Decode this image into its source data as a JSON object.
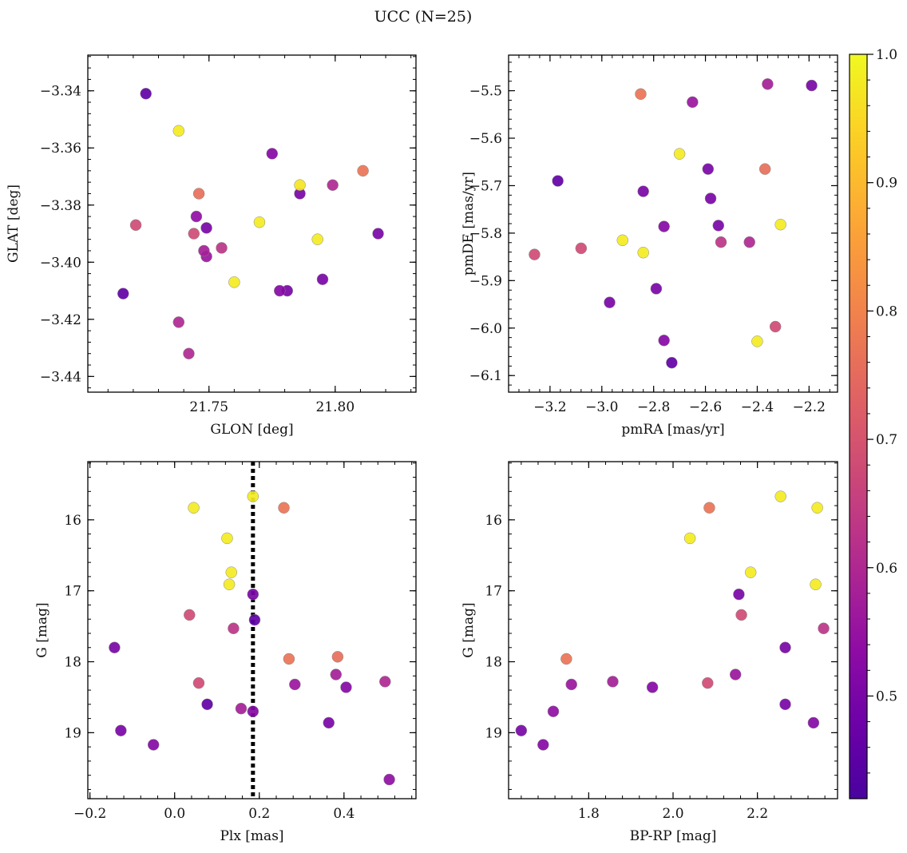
{
  "title": "UCC (N=25)",
  "colorbar": {
    "colormap": "plasma",
    "min": 0.42,
    "max": 1.0,
    "ticks": [
      0.5,
      0.6,
      0.7,
      0.8,
      0.9,
      1.0
    ],
    "tick_labels": [
      "0.5",
      "0.6",
      "0.7",
      "0.8",
      "0.9",
      "1.0"
    ]
  },
  "chart_data": [
    {
      "type": "scatter",
      "name": "glon-glat",
      "xlabel": "GLON [deg]",
      "ylabel": "GLAT [deg]",
      "xlim": [
        21.702,
        21.832
      ],
      "ylim": [
        -3.4455,
        -3.3275
      ],
      "invert_y": false,
      "xticks": [
        21.75,
        21.8
      ],
      "xtick_labels": [
        "21.75",
        "21.80"
      ],
      "yticks": [
        -3.34,
        -3.36,
        -3.38,
        -3.4,
        -3.42,
        -3.44
      ],
      "ytick_labels": [
        "−3.34",
        "−3.36",
        "−3.38",
        "−3.40",
        "−3.42",
        "−3.44"
      ],
      "x": [
        21.725,
        21.738,
        21.775,
        21.811,
        21.786,
        21.786,
        21.799,
        21.746,
        21.721,
        21.745,
        21.744,
        21.749,
        21.77,
        21.793,
        21.817,
        21.755,
        21.748,
        21.749,
        21.76,
        21.716,
        21.778,
        21.781,
        21.795,
        21.738,
        21.742
      ],
      "y": [
        -3.341,
        -3.354,
        -3.362,
        -3.368,
        -3.373,
        -3.376,
        -3.373,
        -3.376,
        -3.387,
        -3.384,
        -3.39,
        -3.388,
        -3.386,
        -3.392,
        -3.39,
        -3.395,
        -3.396,
        -3.398,
        -3.407,
        -3.411,
        -3.41,
        -3.41,
        -3.406,
        -3.421,
        -3.432
      ],
      "color_values": [
        0.46,
        0.98,
        0.52,
        0.77,
        0.97,
        0.5,
        0.6,
        0.76,
        0.68,
        0.54,
        0.68,
        0.5,
        0.98,
        0.98,
        0.5,
        0.63,
        0.58,
        0.56,
        0.98,
        0.46,
        0.52,
        0.5,
        0.5,
        0.6,
        0.6
      ]
    },
    {
      "type": "scatter",
      "name": "pmra-pmde",
      "xlabel": "pmRA [mas/yr]",
      "ylabel": "pmDE [mas/yr]",
      "xlim": [
        -3.36,
        -2.09
      ],
      "ylim": [
        -6.135,
        -5.425
      ],
      "invert_y": false,
      "xticks": [
        -3.2,
        -3.0,
        -2.8,
        -2.6,
        -2.4,
        -2.2
      ],
      "xtick_labels": [
        "−3.2",
        "−3.0",
        "−2.8",
        "−2.6",
        "−2.4",
        "−2.2"
      ],
      "yticks": [
        -5.5,
        -5.6,
        -5.7,
        -5.8,
        -5.9,
        -6.0,
        -6.1
      ],
      "ytick_labels": [
        "−5.5",
        "−5.6",
        "−5.7",
        "−5.8",
        "−5.9",
        "−6.0",
        "−6.1"
      ],
      "x": [
        -2.85,
        -2.65,
        -2.36,
        -2.19,
        -2.7,
        -3.17,
        -2.84,
        -2.59,
        -2.58,
        -2.37,
        -2.55,
        -2.76,
        -2.31,
        -2.92,
        -2.84,
        -2.54,
        -2.43,
        -3.08,
        -3.26,
        -2.79,
        -2.97,
        -2.33,
        -2.4,
        -2.76,
        -2.73
      ],
      "y": [
        -5.507,
        -5.524,
        -5.486,
        -5.489,
        -5.633,
        -5.69,
        -5.712,
        -5.665,
        -5.727,
        -5.665,
        -5.784,
        -5.786,
        -5.782,
        -5.815,
        -5.841,
        -5.819,
        -5.819,
        -5.832,
        -5.845,
        -5.917,
        -5.946,
        -5.997,
        -6.028,
        -6.026,
        -6.073
      ],
      "color_values": [
        0.77,
        0.56,
        0.58,
        0.5,
        0.98,
        0.46,
        0.5,
        0.5,
        0.5,
        0.76,
        0.5,
        0.52,
        0.98,
        0.98,
        0.98,
        0.63,
        0.6,
        0.68,
        0.68,
        0.5,
        0.5,
        0.68,
        0.98,
        0.52,
        0.46
      ]
    },
    {
      "type": "scatter",
      "name": "plx-g",
      "xlabel": "Plx [mas]",
      "ylabel": "G [mag]",
      "xlim": [
        -0.205,
        0.57
      ],
      "ylim": [
        15.18,
        19.93
      ],
      "invert_y": true,
      "vline": 0.185,
      "xticks": [
        -0.2,
        0.0,
        0.2,
        0.4
      ],
      "xtick_labels": [
        "−0.2",
        "0.0",
        "0.2",
        "0.4"
      ],
      "yticks": [
        16,
        17,
        18,
        19
      ],
      "ytick_labels": [
        "16",
        "17",
        "18",
        "19"
      ],
      "x": [
        0.045,
        0.185,
        0.258,
        0.124,
        0.134,
        0.129,
        0.185,
        0.035,
        0.189,
        0.139,
        0.385,
        0.27,
        -0.142,
        0.057,
        0.381,
        0.284,
        0.405,
        0.497,
        0.077,
        0.157,
        0.185,
        -0.127,
        0.364,
        -0.05,
        0.507
      ],
      "y": [
        15.83,
        15.67,
        15.83,
        16.26,
        16.74,
        16.91,
        17.05,
        17.34,
        17.41,
        17.53,
        17.93,
        17.96,
        17.8,
        18.3,
        18.18,
        18.32,
        18.36,
        18.28,
        18.6,
        18.66,
        18.7,
        18.97,
        18.86,
        19.17,
        19.66
      ],
      "color_values": [
        0.98,
        0.98,
        0.77,
        0.98,
        0.98,
        0.98,
        0.5,
        0.68,
        0.46,
        0.63,
        0.76,
        0.77,
        0.5,
        0.68,
        0.58,
        0.56,
        0.52,
        0.6,
        0.46,
        0.58,
        0.52,
        0.5,
        0.5,
        0.52,
        0.54
      ]
    },
    {
      "type": "scatter",
      "name": "bprp-g",
      "xlabel": "BP-RP [mag]",
      "ylabel": "G [mag]",
      "xlim": [
        1.61,
        2.39
      ],
      "ylim": [
        15.18,
        19.93
      ],
      "invert_y": true,
      "xticks": [
        1.8,
        2.0,
        2.2
      ],
      "xtick_labels": [
        "1.8",
        "2.0",
        "2.2"
      ],
      "yticks": [
        16,
        17,
        18,
        19
      ],
      "ytick_labels": [
        "16",
        "17",
        "18",
        "19"
      ],
      "x": [
        2.255,
        2.342,
        2.086,
        2.04,
        2.184,
        2.338,
        2.156,
        2.162,
        2.357,
        2.266,
        1.747,
        1.759,
        1.857,
        1.951,
        2.148,
        2.082,
        1.716,
        2.266,
        2.333,
        1.64,
        1.692
      ],
      "y": [
        15.67,
        15.83,
        15.83,
        16.26,
        16.74,
        16.91,
        17.05,
        17.34,
        17.53,
        17.8,
        17.96,
        18.32,
        18.28,
        18.36,
        18.18,
        18.3,
        18.7,
        18.6,
        18.86,
        18.97,
        19.17
      ],
      "color_values": [
        0.98,
        0.98,
        0.77,
        0.98,
        0.98,
        0.98,
        0.5,
        0.68,
        0.63,
        0.5,
        0.77,
        0.56,
        0.58,
        0.52,
        0.56,
        0.68,
        0.54,
        0.5,
        0.52,
        0.5,
        0.52
      ]
    }
  ]
}
